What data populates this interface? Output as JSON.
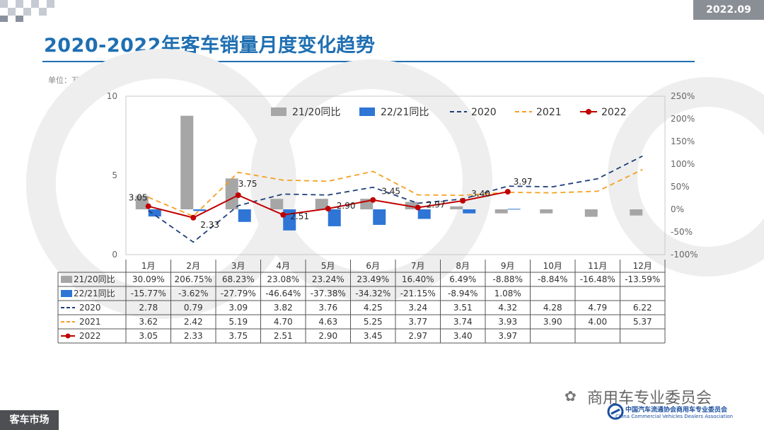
{
  "period_tag": "2022.09",
  "title": "2020-2022年客车销量月度变化趋势",
  "unit": "单位：万辆",
  "footer": "客车市场",
  "watermark": "商用车专业委员会",
  "watermark_org": "中国汽车流通协会商用车专业委员会",
  "watermark_org_en": "China Commercial Vehicles Dealers Association",
  "colors": {
    "yoy2120": "#a6a6a6",
    "yoy2221": "#2e75d6",
    "s2020": "#1f3f7a",
    "s2021": "#f5a020",
    "s2022": "#c00000",
    "accent": "#1f6fb2"
  },
  "chart_data": {
    "type": "bar+line",
    "categories": [
      "1月",
      "2月",
      "3月",
      "4月",
      "5月",
      "6月",
      "7月",
      "8月",
      "9月",
      "10月",
      "11月",
      "12月"
    ],
    "left_axis": {
      "ylim": [
        0,
        10
      ],
      "ticks": [
        "0",
        "5",
        "10"
      ]
    },
    "right_axis": {
      "ylim": [
        -100,
        250
      ],
      "ticks": [
        "-100%",
        "-50%",
        "0%",
        "50%",
        "100%",
        "150%",
        "200%",
        "250%"
      ]
    },
    "bar_series": [
      {
        "name": "21/20同比",
        "values": [
          30.09,
          206.75,
          68.23,
          23.08,
          23.24,
          23.49,
          16.4,
          6.49,
          -8.88,
          -8.84,
          -16.48,
          -13.59
        ],
        "labels": [
          "30.09%",
          "206.75%",
          "68.23%",
          "23.08%",
          "23.24%",
          "23.49%",
          "16.40%",
          "6.49%",
          "-8.88%",
          "-8.84%",
          "-16.48%",
          "-13.59%"
        ]
      },
      {
        "name": "22/21同比",
        "values": [
          -15.77,
          -3.62,
          -27.79,
          -46.64,
          -37.38,
          -34.32,
          -21.15,
          -8.94,
          1.08,
          null,
          null,
          null
        ],
        "labels": [
          "-15.77%",
          "-3.62%",
          "-27.79%",
          "-46.64%",
          "-37.38%",
          "-34.32%",
          "-21.15%",
          "-8.94%",
          "1.08%",
          "",
          "",
          ""
        ]
      }
    ],
    "line_series": [
      {
        "name": "2020",
        "values": [
          2.78,
          0.79,
          3.09,
          3.82,
          3.76,
          4.25,
          3.24,
          3.51,
          4.32,
          4.28,
          4.79,
          6.22
        ],
        "labels": [
          "2.78",
          "0.79",
          "3.09",
          "3.82",
          "3.76",
          "4.25",
          "3.24",
          "3.51",
          "4.32",
          "4.28",
          "4.79",
          "6.22"
        ]
      },
      {
        "name": "2021",
        "values": [
          3.62,
          2.42,
          5.19,
          4.7,
          4.63,
          5.25,
          3.77,
          3.74,
          3.93,
          3.9,
          4.0,
          5.37
        ],
        "labels": [
          "3.62",
          "2.42",
          "5.19",
          "4.70",
          "4.63",
          "5.25",
          "3.77",
          "3.74",
          "3.93",
          "3.90",
          "4.00",
          "5.37"
        ]
      },
      {
        "name": "2022",
        "values": [
          3.05,
          2.33,
          3.75,
          2.51,
          2.9,
          3.45,
          2.97,
          3.4,
          3.97,
          null,
          null,
          null
        ],
        "labels": [
          "3.05",
          "2.33",
          "3.75",
          "2.51",
          "2.90",
          "3.45",
          "2.97",
          "3.40",
          "3.97",
          "",
          "",
          ""
        ]
      }
    ]
  }
}
